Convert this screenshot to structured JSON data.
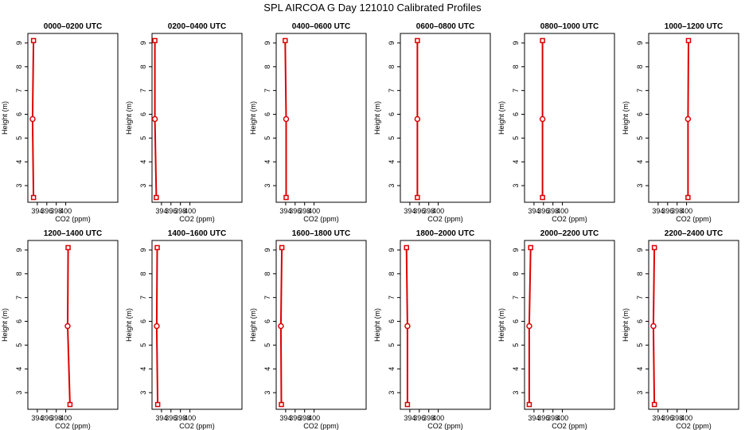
{
  "title": "SPL AIRCOA G  Day 121010  Calibrated Profiles",
  "colors": {
    "profile": "#dd0000",
    "axis": "#000000",
    "background": "#ffffff"
  },
  "chart_data": [
    {
      "type": "line",
      "title": "0000–0200 UTC",
      "xlabel": "CO2 (ppm)",
      "ylabel": "Height (m)",
      "xlim": [
        392,
        411
      ],
      "ylim": [
        2.3,
        9.4
      ],
      "xticks": [
        394,
        396,
        398,
        400
      ],
      "yticks": [
        3,
        4,
        5,
        6,
        7,
        8,
        9
      ],
      "grid": false,
      "series": [
        {
          "x": [
            393.2,
            393.0,
            393.2
          ],
          "y": [
            2.5,
            5.8,
            9.1
          ]
        }
      ]
    },
    {
      "type": "line",
      "title": "0200–0400 UTC",
      "xlabel": "CO2 (ppm)",
      "ylabel": "Height (m)",
      "xlim": [
        392,
        411
      ],
      "ylim": [
        2.3,
        9.4
      ],
      "xticks": [
        394,
        396,
        398,
        400
      ],
      "yticks": [
        3,
        4,
        5,
        6,
        7,
        8,
        9
      ],
      "grid": false,
      "series": [
        {
          "x": [
            392.9,
            392.6,
            392.6
          ],
          "y": [
            2.5,
            5.8,
            9.1
          ]
        }
      ]
    },
    {
      "type": "line",
      "title": "0400–0600 UTC",
      "xlabel": "CO2 (ppm)",
      "ylabel": "Height (m)",
      "xlim": [
        392,
        411
      ],
      "ylim": [
        2.3,
        9.4
      ],
      "xticks": [
        394,
        396,
        398,
        400
      ],
      "yticks": [
        3,
        4,
        5,
        6,
        7,
        8,
        9
      ],
      "grid": false,
      "series": [
        {
          "x": [
            394.1,
            394.1,
            393.9
          ],
          "y": [
            2.5,
            5.8,
            9.1
          ]
        }
      ]
    },
    {
      "type": "line",
      "title": "0600–0800 UTC",
      "xlabel": "CO2 (ppm)",
      "ylabel": "Height (m)",
      "xlim": [
        392,
        411
      ],
      "ylim": [
        2.3,
        9.4
      ],
      "xticks": [
        394,
        396,
        398,
        400
      ],
      "yticks": [
        3,
        4,
        5,
        6,
        7,
        8,
        9
      ],
      "grid": false,
      "series": [
        {
          "x": [
            395.6,
            395.6,
            395.6
          ],
          "y": [
            2.5,
            5.8,
            9.1
          ]
        }
      ]
    },
    {
      "type": "line",
      "title": "0800–1000 UTC",
      "xlabel": "CO2 (ppm)",
      "ylabel": "Height (m)",
      "xlim": [
        392,
        411
      ],
      "ylim": [
        2.3,
        9.4
      ],
      "xticks": [
        394,
        396,
        398,
        400
      ],
      "yticks": [
        3,
        4,
        5,
        6,
        7,
        8,
        9
      ],
      "grid": false,
      "series": [
        {
          "x": [
            395.8,
            395.8,
            395.8
          ],
          "y": [
            2.5,
            5.8,
            9.1
          ]
        }
      ]
    },
    {
      "type": "line",
      "title": "1000–1200 UTC",
      "xlabel": "CO2 (ppm)",
      "ylabel": "Height (m)",
      "xlim": [
        392,
        411
      ],
      "ylim": [
        2.3,
        9.4
      ],
      "xticks": [
        394,
        396,
        398,
        400
      ],
      "yticks": [
        3,
        4,
        5,
        6,
        7,
        8,
        9
      ],
      "grid": false,
      "series": [
        {
          "x": [
            400.3,
            400.3,
            400.4
          ],
          "y": [
            2.5,
            5.8,
            9.1
          ]
        }
      ]
    },
    {
      "type": "line",
      "title": "1200–1400 UTC",
      "xlabel": "CO2 (ppm)",
      "ylabel": "Height (m)",
      "xlim": [
        392,
        411
      ],
      "ylim": [
        2.3,
        9.4
      ],
      "xticks": [
        394,
        396,
        398,
        400
      ],
      "yticks": [
        3,
        4,
        5,
        6,
        7,
        8,
        9
      ],
      "grid": false,
      "series": [
        {
          "x": [
            400.9,
            400.4,
            400.5
          ],
          "y": [
            2.5,
            5.8,
            9.1
          ]
        }
      ]
    },
    {
      "type": "line",
      "title": "1400–1600 UTC",
      "xlabel": "CO2 (ppm)",
      "ylabel": "Height (m)",
      "xlim": [
        392,
        411
      ],
      "ylim": [
        2.3,
        9.4
      ],
      "xticks": [
        394,
        396,
        398,
        400
      ],
      "yticks": [
        3,
        4,
        5,
        6,
        7,
        8,
        9
      ],
      "grid": false,
      "series": [
        {
          "x": [
            393.2,
            393.0,
            393.1
          ],
          "y": [
            2.5,
            5.8,
            9.1
          ]
        }
      ]
    },
    {
      "type": "line",
      "title": "1600–1800 UTC",
      "xlabel": "CO2 (ppm)",
      "ylabel": "Height (m)",
      "xlim": [
        392,
        411
      ],
      "ylim": [
        2.3,
        9.4
      ],
      "xticks": [
        394,
        396,
        398,
        400
      ],
      "yticks": [
        3,
        4,
        5,
        6,
        7,
        8,
        9
      ],
      "grid": false,
      "series": [
        {
          "x": [
            393.1,
            393.0,
            393.2
          ],
          "y": [
            2.5,
            5.8,
            9.1
          ]
        }
      ]
    },
    {
      "type": "line",
      "title": "1800–2000 UTC",
      "xlabel": "CO2 (ppm)",
      "ylabel": "Height (m)",
      "xlim": [
        392,
        411
      ],
      "ylim": [
        2.3,
        9.4
      ],
      "xticks": [
        394,
        396,
        398,
        400
      ],
      "yticks": [
        3,
        4,
        5,
        6,
        7,
        8,
        9
      ],
      "grid": false,
      "series": [
        {
          "x": [
            393.5,
            393.5,
            393.3
          ],
          "y": [
            2.5,
            5.8,
            9.1
          ]
        }
      ]
    },
    {
      "type": "line",
      "title": "2000–2200 UTC",
      "xlabel": "CO2 (ppm)",
      "ylabel": "Height (m)",
      "xlim": [
        392,
        411
      ],
      "ylim": [
        2.3,
        9.4
      ],
      "xticks": [
        394,
        396,
        398,
        400
      ],
      "yticks": [
        3,
        4,
        5,
        6,
        7,
        8,
        9
      ],
      "grid": false,
      "series": [
        {
          "x": [
            393.0,
            393.0,
            393.3
          ],
          "y": [
            2.5,
            5.8,
            9.1
          ]
        }
      ]
    },
    {
      "type": "line",
      "title": "2200–2400 UTC",
      "xlabel": "CO2 (ppm)",
      "ylabel": "Height (m)",
      "xlim": [
        392,
        411
      ],
      "ylim": [
        2.3,
        9.4
      ],
      "xticks": [
        394,
        396,
        398,
        400
      ],
      "yticks": [
        3,
        4,
        5,
        6,
        7,
        8,
        9
      ],
      "grid": false,
      "series": [
        {
          "x": [
            393.2,
            393.0,
            393.2
          ],
          "y": [
            2.5,
            5.8,
            9.1
          ]
        }
      ]
    }
  ]
}
